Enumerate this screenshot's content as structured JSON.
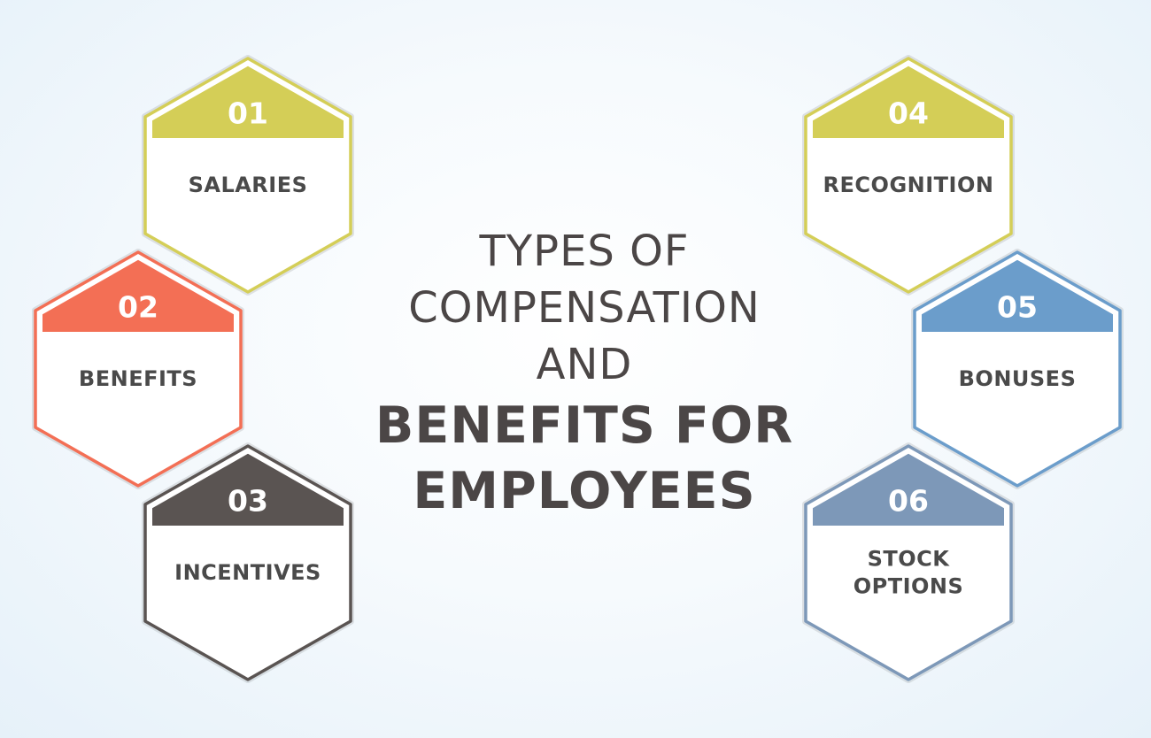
{
  "title": {
    "line1": "TYPES OF",
    "line2": "COMPENSATION",
    "line3": "AND",
    "line4": "BENEFITS FOR",
    "line5": "EMPLOYEES"
  },
  "items": [
    {
      "number": "01",
      "lines": [
        "SALARIES"
      ],
      "color": "#d4ce57"
    },
    {
      "number": "02",
      "lines": [
        "BENEFITS"
      ],
      "color": "#f36f55"
    },
    {
      "number": "03",
      "lines": [
        "INCENTIVES"
      ],
      "color": "#5a5452"
    },
    {
      "number": "04",
      "lines": [
        "RECOGNITION"
      ],
      "color": "#d4ce57"
    },
    {
      "number": "05",
      "lines": [
        "BONUSES"
      ],
      "color": "#6b9dcb"
    },
    {
      "number": "06",
      "lines": [
        "STOCK",
        "OPTIONS"
      ],
      "color": "#7d98b8"
    }
  ]
}
